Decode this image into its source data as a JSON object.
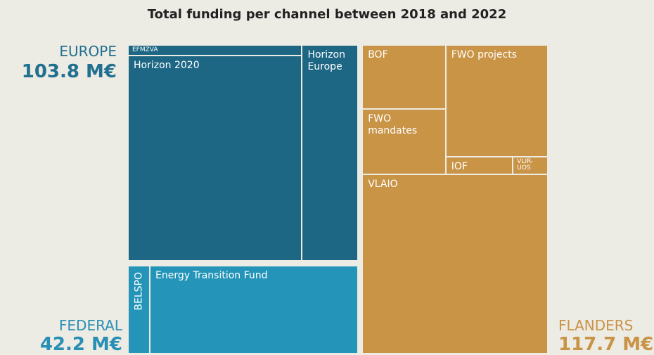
{
  "chart_data": {
    "type": "treemap",
    "title": "Total funding per channel between 2018 and 2022",
    "groups": [
      {
        "name": "EUROPE",
        "value": 103.8,
        "value_label": "103.8 M€",
        "color": "#1d6784",
        "label_color": "#22708f",
        "children": [
          {
            "name": "EFMZVA",
            "value": 3.8
          },
          {
            "name": "Horizon 2020",
            "value": 74.7
          },
          {
            "name": "Horizon Europe",
            "value": 25.3
          }
        ]
      },
      {
        "name": "FEDERAL",
        "value": 42.2,
        "value_label": "42.2 M€",
        "color": "#2495b9",
        "label_color": "#2a8fb5",
        "children": [
          {
            "name": "BELSPO",
            "value": 4.0
          },
          {
            "name": "Energy Transition Fund",
            "value": 38.2
          }
        ]
      },
      {
        "name": "FLANDERS",
        "value": 117.7,
        "value_label": "117.7 M€",
        "color": "#c99446",
        "label_color": "#c99446",
        "children": [
          {
            "name": "BOF",
            "value": 11.0
          },
          {
            "name": "FWO mandates",
            "value": 11.2
          },
          {
            "name": "FWO projects",
            "value": 23.4
          },
          {
            "name": "IOF",
            "value": 2.5
          },
          {
            "name": "VLIR-UOS",
            "value": 1.3
          },
          {
            "name": "VLAIO",
            "value": 68.3
          }
        ]
      }
    ]
  }
}
